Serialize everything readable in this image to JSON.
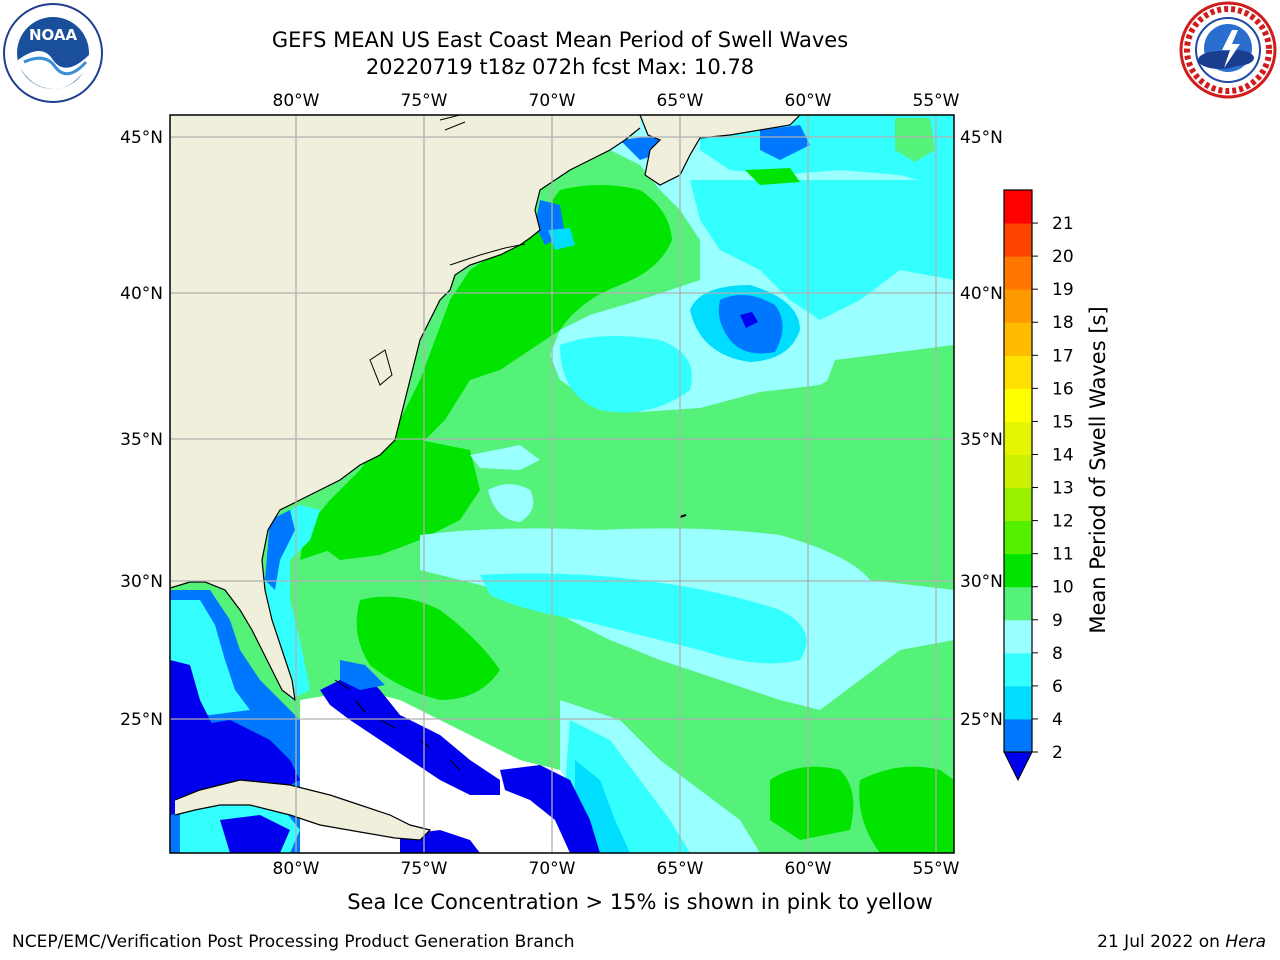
{
  "header": {
    "title_line1": "GEFS MEAN US East Coast Mean Period of Swell Waves",
    "title_line2": "20220719 t18z 072h fcst   Max: 10.78"
  },
  "logos": {
    "left": {
      "icon": "noaa-logo-icon",
      "text": "NOAA"
    },
    "right": {
      "icon": "national-weather-service-logo-icon"
    }
  },
  "map": {
    "lon_ticks": [
      "80°W",
      "75°W",
      "70°W",
      "65°W",
      "60°W",
      "55°W"
    ],
    "lat_ticks": [
      "45°N",
      "40°N",
      "35°N",
      "30°N",
      "25°N"
    ],
    "colors": {
      "land": "#efefdc",
      "no_data": "#ffffff",
      "grid": "#b0b0b0"
    }
  },
  "colorbar": {
    "label": "Mean Period of Swell Waves [s]",
    "ticks": [
      "2",
      "4",
      "6",
      "8",
      "9",
      "10",
      "11",
      "12",
      "13",
      "14",
      "15",
      "16",
      "17",
      "18",
      "19",
      "20",
      "21"
    ],
    "colors": [
      "#0077ff",
      "#00ddff",
      "#33ffff",
      "#99ffff",
      "#55f27a",
      "#00e400",
      "#55f000",
      "#99f000",
      "#ccf000",
      "#e6f500",
      "#ffff00",
      "#ffe000",
      "#ffbb00",
      "#ff9900",
      "#ff7700",
      "#ff4400",
      "#ff0000"
    ],
    "under_color": "#0000ee"
  },
  "notes": {
    "sea_ice": "Sea Ice Concentration > 15% is shown in pink to yellow"
  },
  "footer": {
    "left": "NCEP/EMC/Verification Post Processing Product Generation Branch",
    "right_date": "21 Jul 2022 on",
    "right_machine": "Hera"
  }
}
